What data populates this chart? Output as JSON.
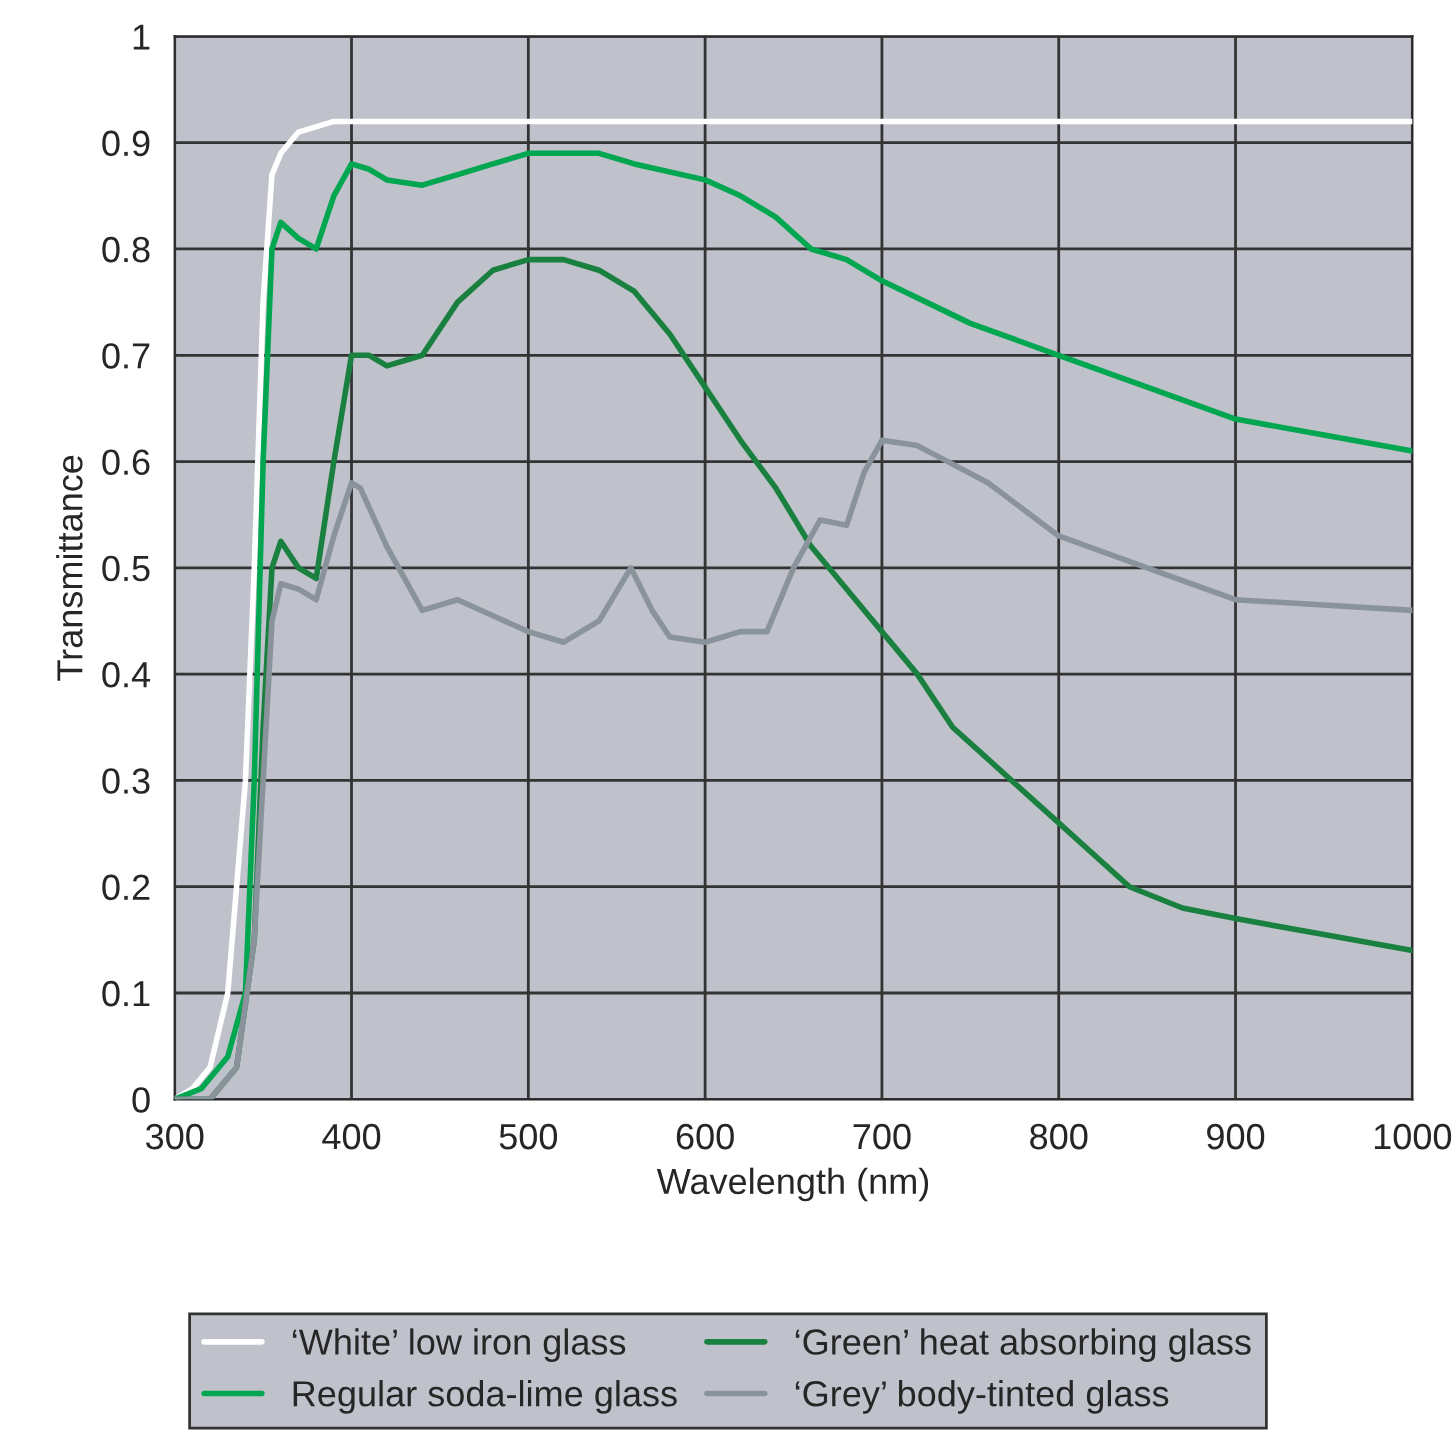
{
  "chart_data": {
    "type": "line",
    "xlabel": "Wavelength (nm)",
    "ylabel": "Transmittance",
    "xlim": [
      300,
      1000
    ],
    "xticks": [
      300,
      400,
      500,
      600,
      700,
      800,
      900,
      1000
    ],
    "ylim": [
      0,
      1
    ],
    "yticks": [
      0,
      0.1,
      0.2,
      0.3,
      0.4,
      0.5,
      0.6,
      0.7,
      0.8,
      0.9,
      1
    ],
    "grid": true,
    "legend": "bottom",
    "marker": "none",
    "line_style": "solid",
    "series": [
      {
        "name": "‘White’ low iron glass",
        "color": "#ffffff",
        "x": [
          300,
          310,
          320,
          330,
          340,
          345,
          350,
          355,
          360,
          370,
          390,
          400,
          1000
        ],
        "values": [
          0,
          0.01,
          0.03,
          0.1,
          0.3,
          0.5,
          0.75,
          0.87,
          0.89,
          0.91,
          0.92,
          0.92,
          0.92
        ]
      },
      {
        "name": "Regular soda-lime glass",
        "color": "#00a650",
        "x": [
          300,
          315,
          330,
          340,
          345,
          350,
          355,
          360,
          370,
          380,
          390,
          400,
          410,
          420,
          440,
          460,
          480,
          500,
          540,
          560,
          600,
          620,
          640,
          660,
          680,
          700,
          750,
          800,
          850,
          900,
          950,
          1000
        ],
        "values": [
          0,
          0.01,
          0.04,
          0.1,
          0.3,
          0.6,
          0.8,
          0.825,
          0.81,
          0.8,
          0.85,
          0.88,
          0.875,
          0.865,
          0.86,
          0.87,
          0.88,
          0.89,
          0.89,
          0.88,
          0.865,
          0.85,
          0.83,
          0.8,
          0.79,
          0.77,
          0.73,
          0.7,
          0.67,
          0.64,
          0.625,
          0.61
        ]
      },
      {
        "name": "‘Green’ heat absorbing glass",
        "color": "#1a8040",
        "x": [
          300,
          320,
          335,
          345,
          350,
          355,
          360,
          370,
          380,
          390,
          400,
          410,
          420,
          440,
          460,
          480,
          500,
          520,
          540,
          560,
          580,
          600,
          620,
          640,
          660,
          680,
          700,
          720,
          740,
          760,
          800,
          840,
          870,
          900,
          950,
          1000
        ],
        "values": [
          0,
          0,
          0.03,
          0.15,
          0.35,
          0.5,
          0.525,
          0.5,
          0.49,
          0.6,
          0.7,
          0.7,
          0.69,
          0.7,
          0.75,
          0.78,
          0.79,
          0.79,
          0.78,
          0.76,
          0.72,
          0.67,
          0.62,
          0.575,
          0.52,
          0.48,
          0.44,
          0.4,
          0.35,
          0.32,
          0.26,
          0.2,
          0.18,
          0.17,
          0.155,
          0.14
        ]
      },
      {
        "name": "‘Grey’ body-tinted glass",
        "color": "#8a939b",
        "x": [
          300,
          320,
          335,
          345,
          350,
          355,
          360,
          370,
          380,
          390,
          400,
          405,
          420,
          440,
          460,
          480,
          500,
          520,
          540,
          558,
          570,
          580,
          600,
          620,
          635,
          650,
          665,
          680,
          690,
          700,
          720,
          760,
          800,
          850,
          900,
          1000
        ],
        "values": [
          0,
          0,
          0.03,
          0.15,
          0.3,
          0.45,
          0.485,
          0.48,
          0.47,
          0.53,
          0.58,
          0.575,
          0.52,
          0.46,
          0.47,
          0.455,
          0.44,
          0.43,
          0.45,
          0.5,
          0.46,
          0.435,
          0.43,
          0.44,
          0.44,
          0.5,
          0.545,
          0.54,
          0.59,
          0.62,
          0.615,
          0.58,
          0.53,
          0.5,
          0.47,
          0.46
        ]
      }
    ]
  }
}
